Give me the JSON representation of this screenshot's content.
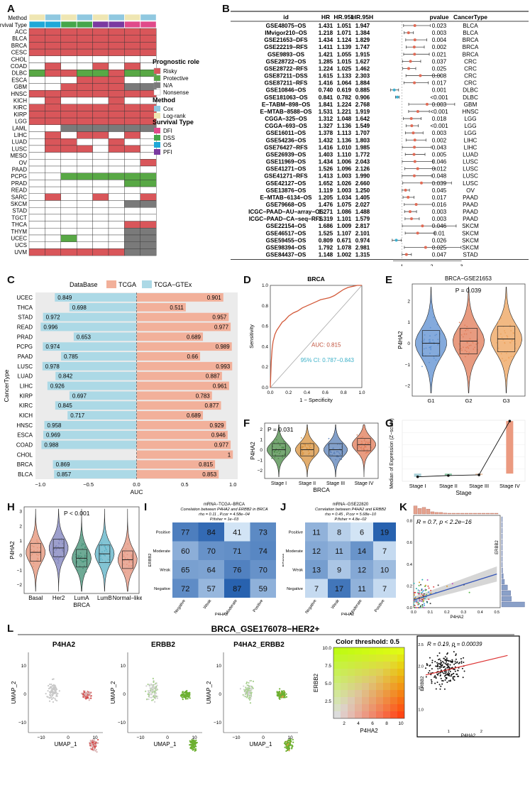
{
  "panels": {
    "A": "A",
    "B": "B",
    "C": "C",
    "D": "D",
    "E": "E",
    "F": "F",
    "G": "G",
    "H": "H",
    "I": "I",
    "J": "J",
    "K": "K",
    "L": "L"
  },
  "panelA": {
    "row_method": "Method",
    "row_survival": "Survival Type",
    "cancers": [
      "ACC",
      "BLCA",
      "BRCA",
      "CESC",
      "CHOL",
      "COAD",
      "DLBC",
      "ESCA",
      "GBM",
      "HNSC",
      "KICH",
      "KIRC",
      "KIRP",
      "LGG",
      "LAML",
      "LIHC",
      "LUAD",
      "LUSC",
      "MESO",
      "OV",
      "PAAD",
      "PCPG",
      "PRAD",
      "READ",
      "SARC",
      "SKCM",
      "STAD",
      "TGCT",
      "THCA",
      "THYM",
      "UCEC",
      "UCS",
      "UVM"
    ],
    "method_codes": [
      "L",
      "C",
      "L",
      "C",
      "L",
      "C",
      "L",
      "C"
    ],
    "survival_codes": [
      "O",
      "O",
      "D",
      "D",
      "P",
      "P",
      "F",
      "F"
    ],
    "grid": [
      "RRRRRRRR",
      "RRRRRRRR",
      "RRRRRRRR",
      "RRRRRRRR",
      "NNNNNNNN",
      "NRNNRNRN",
      "PRRPPRPP",
      "NNNRRRNN",
      "NNRRRRGG",
      "RRRRRRRR",
      "NRNNNRNN",
      "RRRRRRRR",
      "RRRRRRRR",
      "RRRRRRRR",
      "NNGGGGGG",
      "NRNRRNRN",
      "NRRNNRNN",
      "NRRRNRRN",
      "NNNNNNNN",
      "NNNNNNNR",
      "NNNNNNNN",
      "NNPPPPPP",
      "NNNNNNPP",
      "NNNNNNNN",
      "NRNNRNNR",
      "NNNNNNGG",
      "NNNNNNNN",
      "NNNNNNNN",
      "NNNNNNRR",
      "NNNNNNGG",
      "NNPNNNGG",
      "NNNNNNGG",
      "RRRRRRGG"
    ],
    "legend": {
      "prog_title": "Prognostic role",
      "prog_items": [
        {
          "label": "Risky",
          "color": "#d9565a"
        },
        {
          "label": "Protective",
          "color": "#58a845"
        },
        {
          "label": "N/A",
          "color": "#7a7a7a"
        },
        {
          "label": "Nonsense",
          "color": "#ffffff"
        }
      ],
      "method_title": "Method",
      "method_items": [
        {
          "label": "Cox",
          "color": "#90c8e0"
        },
        {
          "label": "Log-rank",
          "color": "#efe6b3"
        }
      ],
      "surv_title": "Survival Type",
      "surv_items": [
        {
          "label": "DFI",
          "color": "#e04a8a"
        },
        {
          "label": "DSS",
          "color": "#45a64b"
        },
        {
          "label": "OS",
          "color": "#1fa8d8"
        },
        {
          "label": "PFI",
          "color": "#7a3aa0"
        }
      ]
    }
  },
  "panelB": {
    "headers": {
      "id": "id",
      "hr": "HR",
      "l": "HR.95L",
      "h": "HR.95H",
      "p": "pvalue",
      "ct": "CancerType"
    },
    "rows": [
      {
        "id": "GSE48075−OS",
        "hr": "1.431",
        "l": "1.051",
        "h": "1.947",
        "p": "0.023",
        "ct": "BLCA"
      },
      {
        "id": "IMvigor210−OS",
        "hr": "1.218",
        "l": "1.071",
        "h": "1.384",
        "p": "0.003",
        "ct": "BLCA"
      },
      {
        "id": "GSE21653−DFS",
        "hr": "1.434",
        "l": "1.124",
        "h": "1.829",
        "p": "0.004",
        "ct": "BRCA"
      },
      {
        "id": "GSE22219−RFS",
        "hr": "1.411",
        "l": "1.139",
        "h": "1.747",
        "p": "0.002",
        "ct": "BRCA"
      },
      {
        "id": "GSE9893−OS",
        "hr": "1.421",
        "l": "1.055",
        "h": "1.915",
        "p": "0.021",
        "ct": "BRCA"
      },
      {
        "id": "GSE28722−OS",
        "hr": "1.285",
        "l": "1.015",
        "h": "1.627",
        "p": "0.037",
        "ct": "CRC"
      },
      {
        "id": "GSE28722−RFS",
        "hr": "1.224",
        "l": "1.025",
        "h": "1.462",
        "p": "0.025",
        "ct": "CRC"
      },
      {
        "id": "GSE87211−DSS",
        "hr": "1.615",
        "l": "1.133",
        "h": "2.303",
        "p": "0.008",
        "ct": "CRC"
      },
      {
        "id": "GSE87211−RFS",
        "hr": "1.416",
        "l": "1.064",
        "h": "1.884",
        "p": "0.017",
        "ct": "CRC"
      },
      {
        "id": "GSE10846−OS",
        "hr": "0.740",
        "l": "0.619",
        "h": "0.885",
        "p": "0.001",
        "ct": "DLBC"
      },
      {
        "id": "GSE181063−OS",
        "hr": "0.841",
        "l": "0.782",
        "h": "0.906",
        "p": "<0.001",
        "ct": "DLBC"
      },
      {
        "id": "E−TABM−898−OS",
        "hr": "1.841",
        "l": "1.224",
        "h": "2.768",
        "p": "0.003",
        "ct": "GBM"
      },
      {
        "id": "E−MTAB−8588−OS",
        "hr": "1.531",
        "l": "1.221",
        "h": "1.919",
        "p": "<0.001",
        "ct": "HNSC"
      },
      {
        "id": "CGGA−325−OS",
        "hr": "1.312",
        "l": "1.048",
        "h": "1.642",
        "p": "0.018",
        "ct": "LGG"
      },
      {
        "id": "CGGA−693−OS",
        "hr": "1.327",
        "l": "1.136",
        "h": "1.549",
        "p": "<0.001",
        "ct": "LGG"
      },
      {
        "id": "GSE16011−OS",
        "hr": "1.378",
        "l": "1.113",
        "h": "1.707",
        "p": "0.003",
        "ct": "LGG"
      },
      {
        "id": "GSE54236−OS",
        "hr": "1.432",
        "l": "1.136",
        "h": "1.803",
        "p": "0.002",
        "ct": "LIHC"
      },
      {
        "id": "GSE76427−RFS",
        "hr": "1.416",
        "l": "1.010",
        "h": "1.985",
        "p": "0.043",
        "ct": "LIHC"
      },
      {
        "id": "GSE26939−OS",
        "hr": "1.403",
        "l": "1.110",
        "h": "1.772",
        "p": "0.005",
        "ct": "LUAD"
      },
      {
        "id": "GSE11969−OS",
        "hr": "1.434",
        "l": "1.006",
        "h": "2.043",
        "p": "0.046",
        "ct": "LUSC"
      },
      {
        "id": "GSE41271−OS",
        "hr": "1.526",
        "l": "1.096",
        "h": "2.126",
        "p": "0.012",
        "ct": "LUSC"
      },
      {
        "id": "GSE41271−RFS",
        "hr": "1.413",
        "l": "1.003",
        "h": "1.990",
        "p": "0.048",
        "ct": "LUSC"
      },
      {
        "id": "GSE42127−OS",
        "hr": "1.652",
        "l": "1.026",
        "h": "2.660",
        "p": "0.039",
        "ct": "LUSC"
      },
      {
        "id": "GSE13876−OS",
        "hr": "1.119",
        "l": "1.003",
        "h": "1.250",
        "p": "0.045",
        "ct": "OV"
      },
      {
        "id": "E−MTAB−6134−OS",
        "hr": "1.205",
        "l": "1.034",
        "h": "1.405",
        "p": "0.017",
        "ct": "PAAD"
      },
      {
        "id": "GSE79668−OS",
        "hr": "1.476",
        "l": "1.075",
        "h": "2.027",
        "p": "0.016",
        "ct": "PAAD"
      },
      {
        "id": "ICGC−PAAD−AU−array−OS",
        "hr": "1.271",
        "l": "1.086",
        "h": "1.488",
        "p": "0.003",
        "ct": "PAAD"
      },
      {
        "id": "ICGC−PAAD−CA−seq−RFS",
        "hr": "1.319",
        "l": "1.101",
        "h": "1.579",
        "p": "0.003",
        "ct": "PAAD"
      },
      {
        "id": "GSE22154−OS",
        "hr": "1.686",
        "l": "1.009",
        "h": "2.817",
        "p": "0.046",
        "ct": "SKCM"
      },
      {
        "id": "GSE46517−OS",
        "hr": "1.525",
        "l": "1.107",
        "h": "2.101",
        "p": "0.01",
        "ct": "SKCM"
      },
      {
        "id": "GSE59455−OS",
        "hr": "0.809",
        "l": "0.671",
        "h": "0.974",
        "p": "0.026",
        "ct": "SKCM"
      },
      {
        "id": "GSE98394−OS",
        "hr": "1.792",
        "l": "1.078",
        "h": "2.981",
        "p": "0.025",
        "ct": "SKCM"
      },
      {
        "id": "GSE84437−OS",
        "hr": "1.148",
        "l": "1.002",
        "h": "1.315",
        "p": "0.047",
        "ct": "STAD"
      }
    ],
    "xticks": [
      "1",
      "2",
      "3"
    ]
  },
  "chart_data": [
    {
      "id": "C",
      "type": "bar",
      "legend_title": "DataBase",
      "series_names": [
        "TCGA",
        "TCGA−GTEx"
      ],
      "ylabel": "CancerType",
      "xlabel": "AUC",
      "xticks": [
        "−1.0",
        "−0.5",
        "0.0",
        "0.5",
        "1.0"
      ],
      "xlim": [
        -1.05,
        1.05
      ],
      "categories": [
        "UCEC",
        "THCA",
        "STAD",
        "READ",
        "PRAD",
        "PCPG",
        "PAAD",
        "LUSC",
        "LUAD",
        "LIHC",
        "KIRP",
        "KIRC",
        "KICH",
        "HNSC",
        "ESCA",
        "COAD",
        "CHOL",
        "BRCA",
        "BLCA"
      ],
      "tcga": [
        0.901,
        0.511,
        0.957,
        0.977,
        0.689,
        0.989,
        0.66,
        0.993,
        0.887,
        0.961,
        0.783,
        0.877,
        0.689,
        0.929,
        0.946,
        0.977,
        1,
        0.815,
        0.853
      ],
      "gtex": [
        0.849,
        0.698,
        0.972,
        0.996,
        0.653,
        0.974,
        0.785,
        0.978,
        0.842,
        0.926,
        0.697,
        0.845,
        0.717,
        0.958,
        0.969,
        0.988,
        null,
        0.869,
        0.857
      ],
      "tcga_labels": [
        "0.901",
        "0.511",
        "0.957",
        "0.977",
        "0.689",
        "0.989",
        "0.66",
        "0.993",
        "0.887",
        "0.961",
        "0.783",
        "0.877",
        "0.689",
        "0.929",
        "0.946",
        "0.977",
        "1",
        "0.815",
        "0.853"
      ],
      "gtex_labels": [
        "0.849",
        "0.698",
        "0.972",
        "0.996",
        "0.653",
        "0.974",
        "0.785",
        "0.978",
        "0.842",
        "0.926",
        "0.697",
        "0.845",
        "0.717",
        "0.958",
        "0.969",
        "0.988",
        "",
        "0.869",
        "0.857"
      ]
    },
    {
      "id": "D",
      "type": "line",
      "title": "BRCA",
      "xlabel": "1 − Specificity",
      "ylabel": "Sensitivity",
      "auc_text": "AUC: 0.815",
      "ci_text": "95% CI: 0.787−0.843",
      "ticks": [
        "0.0",
        "0.2",
        "0.4",
        "0.6",
        "0.8",
        "1.0"
      ],
      "x": [
        0,
        0.01,
        0.02,
        0.03,
        0.05,
        0.07,
        0.1,
        0.13,
        0.16,
        0.2,
        0.25,
        0.3,
        0.35,
        0.4,
        0.45,
        0.5,
        0.55,
        0.6,
        0.65,
        0.7,
        0.75,
        0.8,
        0.85,
        0.9,
        0.95,
        1
      ],
      "y": [
        0,
        0.25,
        0.38,
        0.45,
        0.52,
        0.56,
        0.6,
        0.64,
        0.66,
        0.7,
        0.73,
        0.75,
        0.78,
        0.8,
        0.82,
        0.84,
        0.86,
        0.87,
        0.88,
        0.9,
        0.93,
        0.96,
        0.98,
        0.99,
        1,
        1
      ]
    },
    {
      "id": "E",
      "type": "violin",
      "title": "BRCA−GSE21653",
      "annotation": "P = 0.039",
      "ylabel": "P4HA2",
      "categories": [
        "G1",
        "G2",
        "G3"
      ],
      "medians": [
        0.0,
        0.1,
        0.2
      ],
      "yticks": [
        "−2",
        "−1",
        "0",
        "1",
        "2"
      ],
      "ylim": [
        -2.5,
        2.8
      ],
      "colors": [
        "#5b8ed0",
        "#e07a55",
        "#eea25a"
      ]
    },
    {
      "id": "F",
      "type": "violin",
      "annotation": "P = 0.031",
      "ylabel": "P4HA2",
      "xlabel": "BRCA",
      "categories": [
        "Stage I",
        "Stage II",
        "Stage III",
        "Stage IV"
      ],
      "medians": [
        0.0,
        0.0,
        0.0,
        0.5
      ],
      "yticks": [
        "−2",
        "−1",
        "0",
        "1",
        "2"
      ],
      "ylim": [
        -2.8,
        2.6
      ],
      "colors": [
        "#4a8a45",
        "#d8913c",
        "#5a80b8",
        "#e07a55"
      ]
    },
    {
      "id": "G",
      "type": "bar",
      "ylabel": "Median of Expression (Z−score)",
      "xlabel": "Stage",
      "categories": [
        "Stage I",
        "Stage II",
        "Stage III",
        "Stage IV"
      ],
      "values": [
        -0.05,
        -0.03,
        -0.02,
        0.82
      ],
      "colors": [
        "#a9d0d8",
        "#8fc8a8",
        "#e8c4a8",
        "#eb9a80"
      ]
    },
    {
      "id": "H",
      "type": "violin",
      "annotation": "P < 0.001",
      "ylabel": "P4HA2",
      "xlabel": "BRCA",
      "categories": [
        "Basal",
        "Her2",
        "LumA",
        "LumB",
        "Normal−like"
      ],
      "medians": [
        0.2,
        0.5,
        -0.2,
        0.1,
        -0.3
      ],
      "yticks": [
        "−2",
        "−1",
        "0",
        "1",
        "2",
        "3"
      ],
      "ylim": [
        -2.6,
        3.3
      ],
      "colors": [
        "#e49074",
        "#7c7fbb",
        "#3e8d72",
        "#5ab0c5",
        "#e3907a"
      ]
    },
    {
      "id": "I",
      "type": "heatmap",
      "title": "mRNA−TCGA−BRCA",
      "subtitle1": "Correlation between P4HA2 and ERBB2 in BRCA",
      "subtitle2": "rho = 0.11 , P.cor = 4.58e−04",
      "subtitle3": "P.fisher = 1e−03",
      "rows": [
        "Positive",
        "Moderate",
        "Weak",
        "Negative"
      ],
      "cols": [
        "Negative",
        "Weak",
        "Moderate",
        "Positive"
      ],
      "xlabel": "P4HA2",
      "ylabel": "ERBB2",
      "values": [
        [
          77,
          84,
          41,
          73
        ],
        [
          60,
          70,
          71,
          74
        ],
        [
          65,
          64,
          76,
          70
        ],
        [
          72,
          57,
          87,
          59
        ]
      ]
    },
    {
      "id": "J",
      "type": "heatmap",
      "title": "mRNA−GSE22820",
      "subtitle1": "Correlation between P4HA2 and ERBB2",
      "subtitle2": "rho = 0.45 , P.cor = 5.68e−10",
      "subtitle3": "P.fisher = 4.8e−02",
      "rows": [
        "Positive",
        "Moderate",
        "Weak",
        "Negative"
      ],
      "cols": [
        "Negative",
        "Weak",
        "Moderate",
        "Positive"
      ],
      "xlabel": "P4HA2",
      "ylabel": "ERBB2",
      "values": [
        [
          11,
          8,
          6,
          19
        ],
        [
          12,
          11,
          14,
          7
        ],
        [
          13,
          9,
          12,
          10
        ],
        [
          7,
          17,
          11,
          7
        ]
      ]
    },
    {
      "id": "K",
      "type": "scatter",
      "annotation": "R = 0.7, p < 2.2e−16",
      "xlabel": "P4HA2",
      "ylabel": "ERBB2",
      "xticks": [
        "0.0",
        "0.1",
        "0.2",
        "0.3",
        "0.4",
        "0.5"
      ],
      "yticks": [
        "0.0",
        "0.2",
        "0.4",
        "0.6",
        "0.8"
      ],
      "fit": {
        "x0": 0,
        "y0": 0.07,
        "x1": 0.5,
        "y1": 0.31
      }
    },
    {
      "id": "L4",
      "type": "scatter",
      "annotation": "R = 0.19, p = 0.00039",
      "xlabel": "P4HA2",
      "ylabel": "ERBB2",
      "xticks": [
        "1",
        "2"
      ],
      "yticks": [
        "1.0",
        "1.5",
        "2.0",
        "2.5"
      ]
    }
  ],
  "panelL": {
    "title": "BRCA_GSE176078−HER2+",
    "umap_titles": [
      "P4HA2",
      "ERBB2",
      "P4HA2_ERBB2"
    ],
    "umap_xlabel": "UMAP_1",
    "umap_ylabel": "UMAP_2",
    "umap_xticks": [
      "−10",
      "0",
      "10"
    ],
    "umap_yticks": [
      "−10",
      "0",
      "10"
    ],
    "threshold_title": "Color threshold: 0.5",
    "grid_xlabel": "P4HA2",
    "grid_ylabel": "ERBB2",
    "grid_ticks": [
      "2",
      "4",
      "6",
      "8",
      "10"
    ],
    "grid_yticks": [
      "2.5",
      "5.0",
      "7.5",
      "10.0"
    ]
  },
  "colors": {
    "risky": "#d9565a",
    "protective": "#58a845",
    "na": "#7a7a7a",
    "cox": "#90c8e0",
    "logrank": "#efe6b3",
    "tcga": "#f2b09a",
    "gtex": "#acd9e6"
  }
}
